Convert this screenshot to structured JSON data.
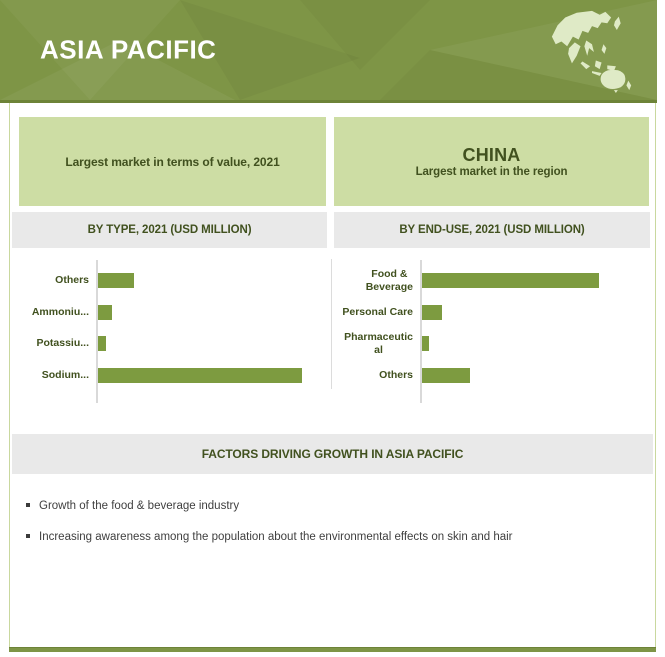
{
  "header": {
    "title": "ASIA PACIFIC"
  },
  "highlight_left": {
    "text": "Largest market in terms of value, 2021"
  },
  "highlight_right": {
    "title": "CHINA",
    "subtitle": "Largest market in the region"
  },
  "chart_data": [
    {
      "type": "bar",
      "orientation": "horizontal",
      "title": "BY TYPE, 2021 (USD MILLION)",
      "categories": [
        "Others",
        "Ammoniu...",
        "Potassiu...",
        "Sodium..."
      ],
      "values": [
        36,
        14,
        8,
        204
      ],
      "value_note": "no numeric axis shown; values are relative bar lengths in screenshot pixels",
      "bar_color": "#7d9b40",
      "grid": false,
      "legend": false
    },
    {
      "type": "bar",
      "orientation": "horizontal",
      "title": "BY END-USE, 2021 (USD MILLION)",
      "categories": [
        "Food &\nBeverage",
        "Personal Care",
        "Pharmaceutic\nal",
        "Others"
      ],
      "values": [
        177,
        20,
        7,
        48
      ],
      "value_note": "no numeric axis shown; values are relative bar lengths in screenshot pixels",
      "bar_color": "#7d9b40",
      "grid": false,
      "legend": false
    }
  ],
  "factors": {
    "title": "FACTORS DRIVING GROWTH IN ASIA PACIFIC",
    "items": [
      "Growth of the food & beverage industry",
      "Increasing awareness among the population about the environmental effects on skin and hair"
    ]
  },
  "colors": {
    "banner": "#7e9546",
    "banner_edge": "#6d8338",
    "highlight_bg": "#cddda4",
    "header_bg": "#e9e9e9",
    "bar": "#7d9b40",
    "dark_green_text": "#41511f",
    "map_fill": "#dfeac6",
    "axis": "#d9d9d9",
    "frame": "#c9d89e",
    "bullet_text": "#3f3f3f"
  }
}
